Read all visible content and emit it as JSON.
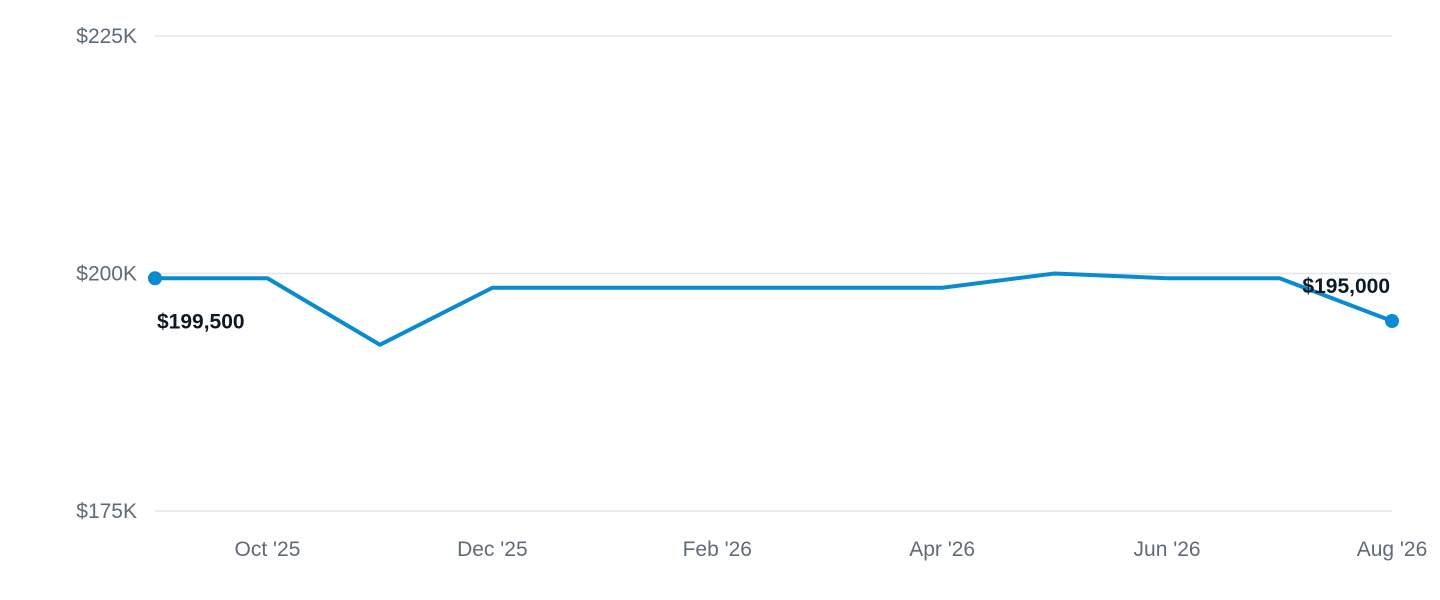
{
  "chart_data": {
    "type": "line",
    "title": "",
    "xlabel": "",
    "ylabel": "",
    "x": [
      "2025-09",
      "2025-10",
      "2025-11",
      "2025-12",
      "2026-01",
      "2026-02",
      "2026-03",
      "2026-04",
      "2026-05",
      "2026-06",
      "2026-07",
      "2026-08"
    ],
    "series": [
      {
        "values": [
          199500,
          199500,
          192500,
          198500,
          198500,
          198500,
          198500,
          198500,
          200000,
          199500,
          199500,
          195000
        ],
        "color": "#0a8bd0"
      }
    ],
    "ylim": [
      175000,
      225000
    ],
    "y_ticks": [
      175000,
      200000,
      225000
    ],
    "y_tick_labels": [
      "$175K",
      "$200K",
      "$225K"
    ],
    "x_ticks": [
      "2025-10",
      "2025-12",
      "2026-02",
      "2026-04",
      "2026-06",
      "2026-08"
    ],
    "x_tick_labels": [
      "Oct '25",
      "Dec '25",
      "Feb '26",
      "Apr '26",
      "Jun '26",
      "Aug '26"
    ],
    "data_labels": [
      {
        "x": "2025-09",
        "text": "$199,500"
      },
      {
        "x": "2026-08",
        "text": "$195,000"
      }
    ],
    "grid": true,
    "legend": "none"
  }
}
